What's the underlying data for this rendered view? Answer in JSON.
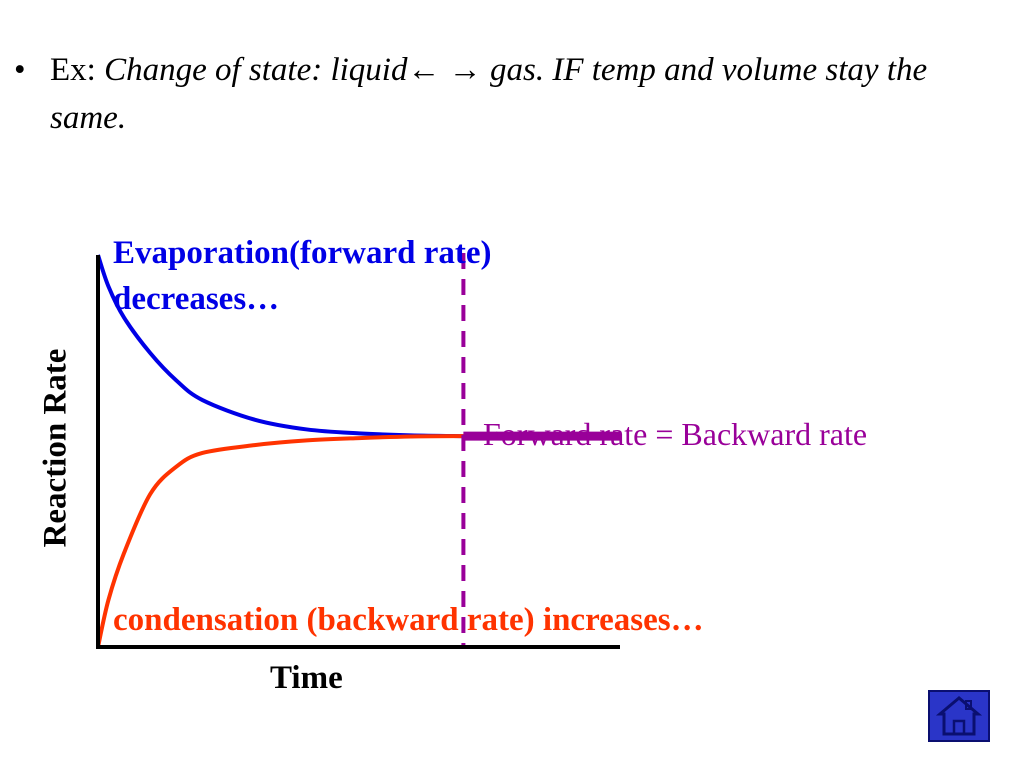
{
  "slide": {
    "bullet": "•",
    "prefix": "Ex: ",
    "italic_text": "Change of state:  liquid",
    "arrows": "← →",
    "italic_rest": " gas. IF temp and volume stay the same."
  },
  "chart_data": {
    "type": "line",
    "xlabel": "Time",
    "ylabel": "Reaction Rate",
    "x": [
      0,
      0.2,
      0.5,
      1,
      1.5,
      2,
      3,
      4,
      5,
      6,
      7
    ],
    "series": [
      {
        "name": "Evaporation(forward rate) decreases…",
        "color": "#0000e6",
        "values": [
          10,
          9.2,
          8.4,
          7.5,
          6.8,
          6.3,
          5.8,
          5.55,
          5.45,
          5.4,
          5.38
        ]
      },
      {
        "name": "condensation (backward rate) increases…",
        "color": "#ff3300",
        "values": [
          0,
          1.2,
          2.4,
          3.9,
          4.6,
          4.95,
          5.15,
          5.27,
          5.33,
          5.37,
          5.38
        ]
      }
    ],
    "equilibrium_time": 7,
    "equilibrium_rate": 5.38,
    "xlim": [
      0,
      10
    ],
    "ylim": [
      0,
      10
    ],
    "annotation": "Forward rate = Backward rate",
    "colors": {
      "equilibrium": "#990099",
      "axis": "#000000"
    }
  },
  "nav": {
    "home_icon": "home-icon"
  }
}
